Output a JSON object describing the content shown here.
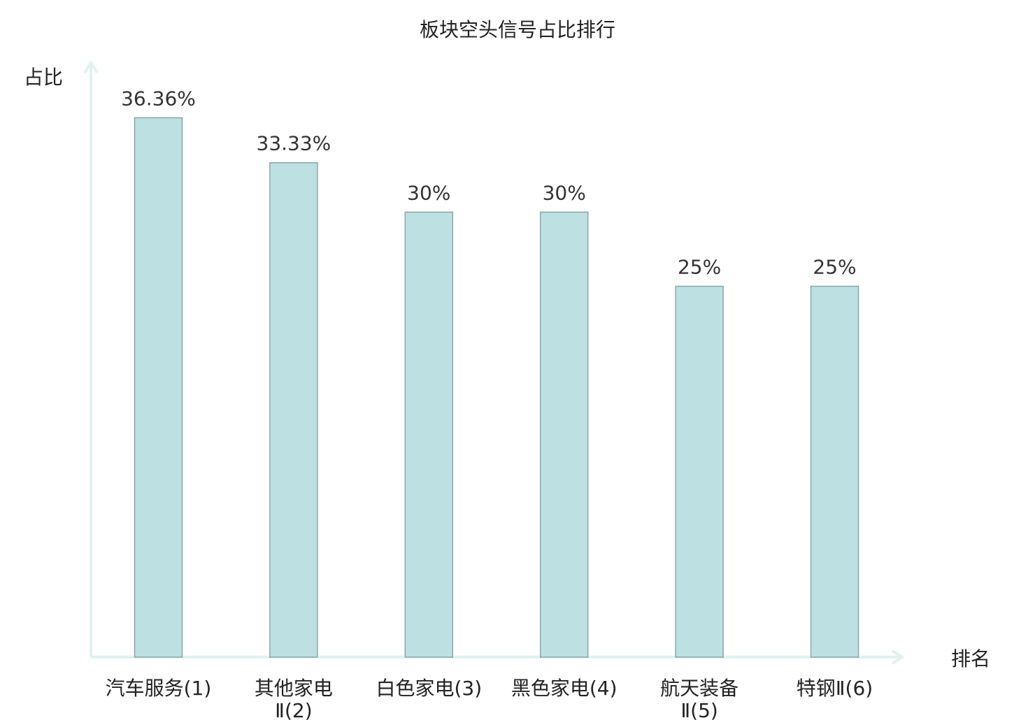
{
  "chart_data": {
    "type": "bar",
    "title": "板块空头信号占比排行",
    "ylabel": "占比",
    "xlabel": "排名",
    "categories": [
      "汽车服务(1)",
      "其他家电Ⅱ(2)",
      "白色家电(3)",
      "黑色家电(4)",
      "航天装备Ⅱ(5)",
      "特钢Ⅱ(6)"
    ],
    "category_lines": [
      [
        "汽车服务(1)"
      ],
      [
        "其他家电",
        "Ⅱ(2)"
      ],
      [
        "白色家电(3)"
      ],
      [
        "黑色家电(4)"
      ],
      [
        "航天装备",
        "Ⅱ(5)"
      ],
      [
        "特钢Ⅱ(6)"
      ]
    ],
    "values": [
      36.36,
      33.33,
      30,
      30,
      25,
      25
    ],
    "value_labels": [
      "36.36%",
      "33.33%",
      "30%",
      "30%",
      "25%",
      "25%"
    ],
    "highlight_index": 5,
    "ylim": [
      0,
      40
    ],
    "grid": false,
    "colors": {
      "bar_fill": "#bde0e3",
      "bar_stroke": "#8aa6a6",
      "axis": "#dff2ef",
      "highlight_text": "#e8141c",
      "text": "#222222"
    }
  }
}
